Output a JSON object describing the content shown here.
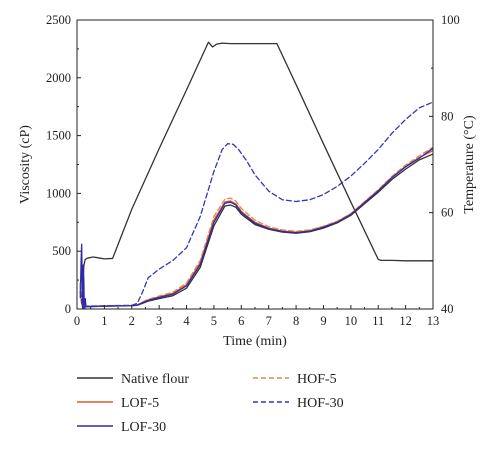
{
  "chart_data": {
    "type": "line",
    "title": "",
    "xlabel": "Time (min)",
    "ylabel": "Viscosity (cP)",
    "y2label": "Temperature (°C)",
    "xlim": [
      0,
      13
    ],
    "ylim": [
      0,
      2500
    ],
    "y2lim": [
      40,
      100
    ],
    "x_ticks": [
      0,
      1,
      2,
      3,
      4,
      5,
      6,
      7,
      8,
      9,
      10,
      11,
      12,
      13
    ],
    "y_ticks": [
      0,
      500,
      1000,
      1500,
      2000,
      2500
    ],
    "y2_ticks": [
      40,
      60,
      80,
      100
    ],
    "grid": false,
    "legend_position": "bottom",
    "series": [
      {
        "name": "Native flour",
        "axis": "y",
        "color": "#333333",
        "dash": "solid",
        "x": [
          0.12,
          0.16,
          0.2,
          0.25,
          0.28,
          0.32,
          0.6,
          1.0,
          1.2,
          1.5,
          2.0,
          2.2,
          2.4,
          2.6,
          3.0,
          3.5,
          4.0,
          4.5,
          5.0,
          5.4,
          5.6,
          5.8,
          6.0,
          6.5,
          7.0,
          7.5,
          8.0,
          8.5,
          9.0,
          9.5,
          10.0,
          10.5,
          11.0,
          11.5,
          12.0,
          12.5,
          13.0
        ],
        "y": [
          150,
          60,
          20,
          10,
          15,
          20,
          22,
          24,
          25,
          26,
          28,
          32,
          50,
          68,
          90,
          115,
          180,
          360,
          720,
          890,
          900,
          880,
          820,
          730,
          690,
          665,
          655,
          668,
          700,
          745,
          810,
          910,
          1010,
          1120,
          1210,
          1290,
          1340
        ]
      },
      {
        "name": "LOF-5",
        "axis": "y",
        "color": "#e05a2b",
        "dash": "solid",
        "x": [
          0.12,
          0.16,
          0.2,
          0.25,
          0.28,
          0.32,
          0.6,
          1.0,
          1.2,
          1.5,
          2.0,
          2.2,
          2.4,
          2.6,
          3.0,
          3.5,
          4.0,
          4.5,
          5.0,
          5.4,
          5.6,
          5.8,
          6.0,
          6.5,
          7.0,
          7.5,
          8.0,
          8.5,
          9.0,
          9.5,
          10.0,
          10.5,
          11.0,
          11.5,
          12.0,
          12.5,
          13.0
        ],
        "y": [
          200,
          80,
          25,
          15,
          18,
          22,
          24,
          26,
          27,
          28,
          30,
          35,
          58,
          78,
          105,
          135,
          210,
          400,
          770,
          925,
          935,
          910,
          845,
          750,
          700,
          675,
          665,
          678,
          712,
          755,
          822,
          925,
          1025,
          1140,
          1235,
          1310,
          1370
        ]
      },
      {
        "name": "LOF-30",
        "axis": "y",
        "color": "#2e2aa8",
        "dash": "solid",
        "x": [
          0.12,
          0.15,
          0.17,
          0.19,
          0.21,
          0.23,
          0.25,
          0.27,
          0.3,
          0.33,
          0.6,
          1.0,
          1.2,
          1.5,
          2.0,
          2.2,
          2.4,
          2.6,
          3.0,
          3.5,
          4.0,
          4.5,
          5.0,
          5.4,
          5.6,
          5.8,
          6.0,
          6.5,
          7.0,
          7.5,
          8.0,
          8.5,
          9.0,
          9.5,
          10.0,
          10.5,
          11.0,
          11.5,
          12.0,
          12.5,
          13.0
        ],
        "y": [
          100,
          420,
          560,
          260,
          -80,
          380,
          250,
          -60,
          90,
          20,
          22,
          25,
          26,
          27,
          29,
          34,
          55,
          75,
          100,
          128,
          200,
          385,
          750,
          915,
          925,
          900,
          835,
          742,
          695,
          670,
          660,
          673,
          708,
          750,
          818,
          920,
          1022,
          1136,
          1230,
          1305,
          1390
        ]
      },
      {
        "name": "HOF-5",
        "axis": "y",
        "color": "#e8864f",
        "dash": "dashed",
        "x": [
          0.12,
          0.16,
          0.2,
          0.25,
          0.28,
          0.32,
          0.6,
          1.0,
          1.2,
          1.5,
          2.0,
          2.2,
          2.4,
          2.6,
          3.0,
          3.5,
          4.0,
          4.5,
          5.0,
          5.4,
          5.6,
          5.8,
          6.0,
          6.5,
          7.0,
          7.5,
          8.0,
          8.5,
          9.0,
          9.5,
          10.0,
          10.5,
          11.0,
          11.5,
          12.0,
          12.5,
          13.0
        ],
        "y": [
          180,
          70,
          22,
          12,
          16,
          22,
          24,
          26,
          27,
          28,
          30,
          36,
          62,
          84,
          112,
          145,
          225,
          420,
          800,
          950,
          960,
          935,
          870,
          768,
          712,
          684,
          672,
          684,
          716,
          760,
          826,
          930,
          1032,
          1148,
          1245,
          1325,
          1400
        ]
      },
      {
        "name": "HOF-30",
        "axis": "y",
        "color": "#3535b8",
        "dash": "dashed",
        "x": [
          0.12,
          0.16,
          0.2,
          0.25,
          0.28,
          0.32,
          0.6,
          1.0,
          1.2,
          1.5,
          2.0,
          2.2,
          2.4,
          2.6,
          3.0,
          3.5,
          4.0,
          4.5,
          5.0,
          5.3,
          5.5,
          5.7,
          5.9,
          6.2,
          6.5,
          7.0,
          7.5,
          8.0,
          8.5,
          9.0,
          9.5,
          10.0,
          10.5,
          11.0,
          11.5,
          12.0,
          12.5,
          13.0
        ],
        "y": [
          220,
          90,
          30,
          18,
          20,
          24,
          26,
          28,
          29,
          30,
          32,
          50,
          150,
          270,
          345,
          420,
          530,
          800,
          1190,
          1380,
          1430,
          1425,
          1380,
          1280,
          1160,
          1020,
          945,
          930,
          945,
          990,
          1060,
          1150,
          1260,
          1380,
          1520,
          1640,
          1740,
          1790
        ]
      },
      {
        "name": "",
        "axis": "y2",
        "color": "#333333",
        "dash": "solid",
        "x": [
          0.15,
          0.2,
          0.25,
          0.3,
          0.4,
          0.6,
          0.8,
          1.0,
          1.3,
          2.0,
          3.0,
          4.0,
          4.8,
          4.95,
          5.1,
          5.3,
          5.6,
          6.0,
          6.5,
          7.0,
          7.3,
          8.0,
          9.0,
          10.0,
          11.0,
          11.1,
          11.5,
          12.0,
          13.0
        ],
        "y": [
          48,
          44,
          49,
          50.3,
          50.6,
          50.8,
          50.6,
          50.4,
          50.5,
          60.7,
          73.3,
          85.5,
          95.4,
          94.4,
          95.0,
          95.2,
          95.1,
          95.1,
          95.1,
          95.1,
          95.1,
          86.6,
          74.3,
          62.2,
          50.3,
          50.1,
          50.1,
          50.0,
          50.0
        ]
      }
    ]
  }
}
